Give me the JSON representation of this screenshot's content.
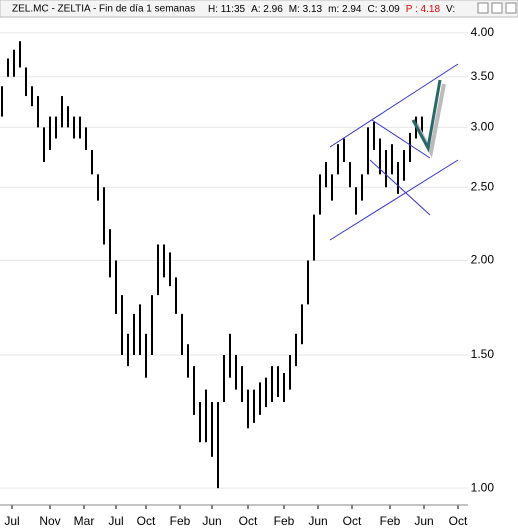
{
  "chart_data": {
    "type": "range-bar",
    "title": "ZEL.MC - ZELTIA - Fin de día 1 semanas",
    "info": [
      "H: 11:35",
      "A: 2.96",
      "M: 3.13",
      "m: 2.94",
      "C: 3.09",
      "P : 4.18",
      "V:"
    ],
    "color": "#000000",
    "log_y": true,
    "ylim": [
      0.95,
      4.16
    ],
    "yticks": [
      {
        "value": 1,
        "label": "1.00"
      },
      {
        "value": 1.5,
        "label": "1.50"
      },
      {
        "value": 2,
        "label": "2.00"
      },
      {
        "value": 2.5,
        "label": "2.50"
      },
      {
        "value": 3,
        "label": "3.00"
      },
      {
        "value": 3.5,
        "label": "3.50"
      },
      {
        "value": 4,
        "label": "4.00"
      }
    ],
    "xlim": [
      0,
      234
    ],
    "xticks": [
      {
        "value": 6,
        "label": "Jul"
      },
      {
        "value": 25,
        "label": "Nov"
      },
      {
        "value": 42,
        "label": "Mar"
      },
      {
        "value": 58,
        "label": "Jul"
      },
      {
        "value": 73,
        "label": "Oct"
      },
      {
        "value": 90,
        "label": "Feb"
      },
      {
        "value": 106,
        "label": "Jun"
      },
      {
        "value": 124,
        "label": "Oct"
      },
      {
        "value": 142,
        "label": "Feb"
      },
      {
        "value": 159,
        "label": "Jun"
      },
      {
        "value": 176,
        "label": "Oct"
      },
      {
        "value": 195,
        "label": "Feb"
      },
      {
        "value": 212,
        "label": "Jun"
      },
      {
        "value": 229,
        "label": "Oct"
      }
    ],
    "x": [
      1,
      4,
      7,
      10,
      13,
      16,
      19,
      22,
      25,
      28,
      31,
      34,
      37,
      40,
      43,
      46,
      49,
      52,
      55,
      58,
      61,
      64,
      67,
      70,
      73,
      76,
      79,
      82,
      85,
      88,
      91,
      94,
      97,
      100,
      103,
      106,
      109,
      112,
      115,
      118,
      121,
      124,
      127,
      130,
      133,
      136,
      139,
      142,
      145,
      148,
      151,
      154,
      157,
      160,
      163,
      166,
      169,
      172,
      175,
      178,
      181,
      184,
      187,
      190,
      193,
      196,
      199,
      202,
      205,
      208,
      211
    ],
    "high": [
      3.4,
      3.7,
      3.8,
      3.9,
      3.6,
      3.4,
      3.3,
      3.0,
      3.1,
      3.1,
      3.3,
      3.2,
      3.1,
      3.1,
      3.0,
      2.8,
      2.6,
      2.5,
      2.2,
      2.0,
      1.8,
      1.6,
      1.7,
      1.75,
      1.6,
      1.8,
      2.1,
      2.1,
      2.05,
      1.9,
      1.7,
      1.55,
      1.45,
      1.3,
      1.35,
      1.3,
      1.3,
      1.5,
      1.6,
      1.5,
      1.45,
      1.35,
      1.35,
      1.38,
      1.4,
      1.45,
      1.45,
      1.42,
      1.5,
      1.6,
      1.75,
      2.0,
      2.3,
      2.6,
      2.7,
      2.6,
      2.85,
      2.9,
      2.7,
      2.5,
      2.6,
      3.0,
      3.05,
      2.9,
      2.8,
      2.85,
      2.7,
      2.8,
      2.95,
      3.1,
      3.1
    ],
    "low": [
      3.1,
      3.5,
      3.5,
      3.6,
      3.3,
      3.2,
      3.0,
      2.7,
      2.8,
      2.9,
      3.0,
      3.0,
      2.9,
      2.9,
      2.8,
      2.6,
      2.4,
      2.1,
      1.9,
      1.7,
      1.5,
      1.45,
      1.5,
      1.5,
      1.4,
      1.5,
      1.8,
      1.9,
      1.85,
      1.7,
      1.5,
      1.4,
      1.25,
      1.15,
      1.15,
      1.1,
      1.0,
      1.3,
      1.4,
      1.35,
      1.3,
      1.2,
      1.22,
      1.25,
      1.28,
      1.3,
      1.32,
      1.3,
      1.35,
      1.45,
      1.55,
      1.75,
      2.0,
      2.3,
      2.5,
      2.4,
      2.6,
      2.7,
      2.5,
      2.3,
      2.4,
      2.6,
      2.8,
      2.6,
      2.5,
      2.6,
      2.45,
      2.55,
      2.7,
      2.9,
      2.95
    ]
  }
}
